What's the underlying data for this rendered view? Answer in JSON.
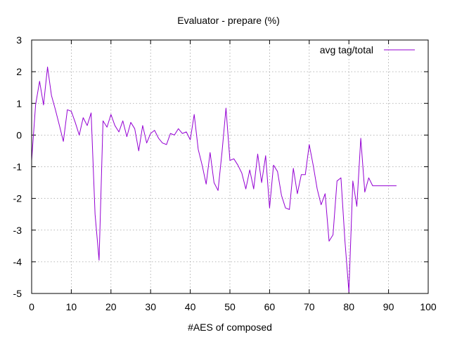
{
  "chart_data": {
    "type": "line",
    "title": "Evaluator - prepare (%)",
    "xlabel": "#AES of composed",
    "ylabel": "",
    "xlim": [
      0,
      100
    ],
    "ylim": [
      -5,
      3
    ],
    "xticks": [
      0,
      10,
      20,
      30,
      40,
      50,
      60,
      70,
      80,
      90,
      100
    ],
    "yticks": [
      3,
      2,
      1,
      0,
      -1,
      -2,
      -3,
      -4,
      -5
    ],
    "grid": true,
    "legend_position": "top-right",
    "series": [
      {
        "name": "avg tag/total",
        "color": "#9400d3",
        "x": [
          0,
          1,
          2,
          3,
          4,
          5,
          6,
          7,
          8,
          9,
          10,
          11,
          12,
          13,
          14,
          15,
          16,
          17,
          18,
          19,
          20,
          21,
          22,
          23,
          24,
          25,
          26,
          27,
          28,
          29,
          30,
          31,
          32,
          33,
          34,
          35,
          36,
          37,
          38,
          39,
          40,
          41,
          42,
          43,
          44,
          45,
          46,
          47,
          48,
          49,
          50,
          51,
          52,
          53,
          54,
          55,
          56,
          57,
          58,
          59,
          60,
          61,
          62,
          63,
          64,
          65,
          66,
          67,
          68,
          69,
          70,
          71,
          72,
          73,
          74,
          75,
          76,
          77,
          78,
          79,
          80,
          81,
          82,
          83,
          84,
          85,
          86,
          87,
          88,
          89,
          90,
          91,
          92
        ],
        "y": [
          -0.8,
          0.95,
          1.7,
          0.95,
          2.15,
          1.25,
          0.8,
          0.3,
          -0.2,
          0.8,
          0.75,
          0.4,
          0.0,
          0.55,
          0.3,
          0.7,
          -2.5,
          -3.95,
          0.45,
          0.25,
          0.65,
          0.3,
          0.1,
          0.45,
          -0.05,
          0.4,
          0.2,
          -0.5,
          0.3,
          -0.25,
          0.05,
          0.15,
          -0.1,
          -0.25,
          -0.3,
          0.05,
          0.0,
          0.2,
          0.05,
          0.1,
          -0.15,
          0.65,
          -0.45,
          -0.95,
          -1.55,
          -0.55,
          -1.5,
          -1.75,
          -0.55,
          0.85,
          -0.8,
          -0.75,
          -0.95,
          -1.2,
          -1.7,
          -1.1,
          -1.7,
          -0.6,
          -1.5,
          -0.65,
          -2.3,
          -0.95,
          -1.15,
          -1.9,
          -2.3,
          -2.35,
          -1.05,
          -1.85,
          -1.25,
          -1.25,
          -0.3,
          -0.95,
          -1.7,
          -2.2,
          -1.85,
          -3.35,
          -3.15,
          -1.45,
          -1.35,
          -3.35,
          -4.95,
          -1.45,
          -2.25,
          -0.1,
          -1.8,
          -1.35,
          -1.6,
          -1.6,
          -1.6,
          -1.6,
          -1.6,
          -1.6,
          -1.6
        ]
      }
    ]
  }
}
